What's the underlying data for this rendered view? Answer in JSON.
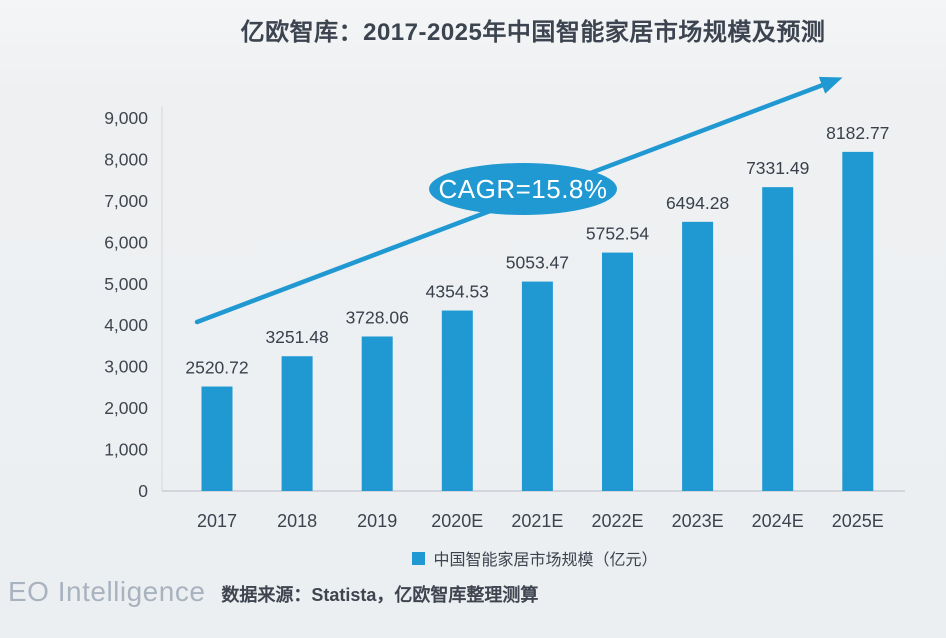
{
  "chart_data": {
    "type": "bar",
    "title": "亿欧智库：2017-2025年中国智能家居市场规模及预测",
    "categories": [
      "2017",
      "2018",
      "2019",
      "2020E",
      "2021E",
      "2022E",
      "2023E",
      "2024E",
      "2025E"
    ],
    "values": [
      2520.72,
      3251.48,
      3728.06,
      4354.53,
      5053.47,
      5752.54,
      6494.28,
      7331.49,
      8182.77
    ],
    "series_name": "中国智能家居市场规模（亿元）",
    "xlabel": "",
    "ylabel": "",
    "ylim": [
      0,
      9000
    ],
    "y_ticks": [
      {
        "value": 0,
        "label": "0"
      },
      {
        "value": 1000,
        "label": "1,000"
      },
      {
        "value": 2000,
        "label": "2,000"
      },
      {
        "value": 3000,
        "label": "3,000"
      },
      {
        "value": 4000,
        "label": "4,000"
      },
      {
        "value": 5000,
        "label": "5,000"
      },
      {
        "value": 6000,
        "label": "6,000"
      },
      {
        "value": 7000,
        "label": "7,000"
      },
      {
        "value": 8000,
        "label": "8,000"
      },
      {
        "value": 9000,
        "label": "9,000"
      }
    ],
    "grid": false,
    "legend_position": "bottom",
    "bar_color": "#2099d3",
    "annotation": {
      "label": "CAGR=15.8%",
      "type": "trend-arrow-with-ellipse"
    }
  },
  "legend": {
    "label": "中国智能家居市场规模（亿元）"
  },
  "footer": {
    "brand": "EO Intelligence",
    "source": "数据来源：Statista，亿欧智库整理测算"
  },
  "colors": {
    "bar": "#2099d3",
    "title_text": "#3c4450",
    "axis_text": "#40464f",
    "value_label_text": "#3a414c",
    "background": "#eef0f2",
    "footer_brand": "#a9b3bf",
    "cagr_text": "#ffffff"
  }
}
